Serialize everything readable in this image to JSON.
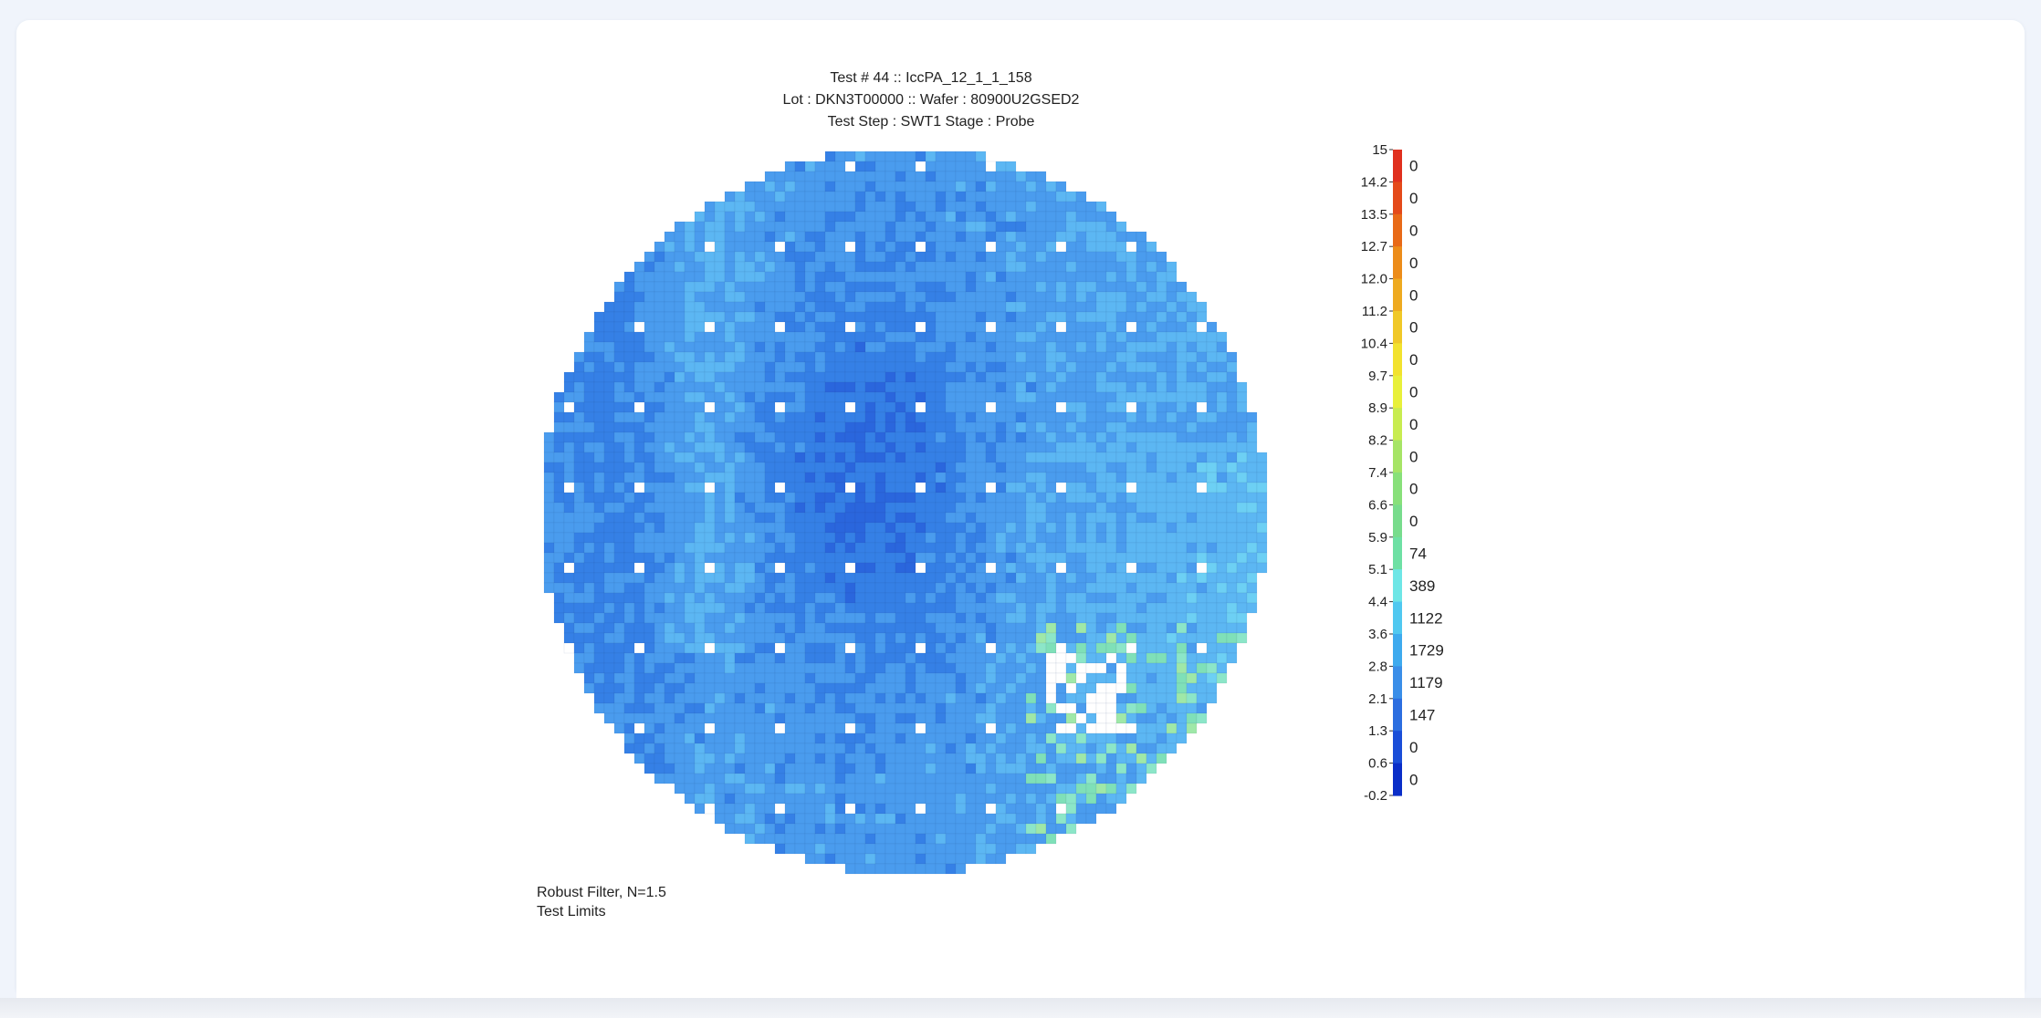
{
  "chart_data": {
    "type": "heatmap",
    "title_lines": [
      "Test #  44 :: IccPA_12_1_1_158",
      "Lot : DKN3T00000 :: Wafer : 80900U2GSED2",
      "Test Step : SWT1 Stage : Probe"
    ],
    "color_scale": {
      "tick_labels": [
        "15",
        "14.2",
        "13.5",
        "12.7",
        "12.0",
        "11.2",
        "10.4",
        "9.7",
        "8.9",
        "8.2",
        "7.4",
        "6.6",
        "5.9",
        "5.1",
        "4.4",
        "3.6",
        "2.8",
        "2.1",
        "1.3",
        "0.6",
        "-0.2"
      ],
      "bin_counts": [
        0,
        0,
        0,
        0,
        0,
        0,
        0,
        0,
        0,
        0,
        0,
        0,
        74,
        389,
        1122,
        1729,
        1179,
        147,
        0,
        0
      ],
      "bin_colors": [
        "#e0301e",
        "#e44a1a",
        "#e86a18",
        "#ec8c1a",
        "#eeaa20",
        "#f0c828",
        "#f2e22e",
        "#e8f03a",
        "#c8ec50",
        "#a6e466",
        "#88e07a",
        "#78dc8c",
        "#6ee0a4",
        "#6ee6e6",
        "#50c8f0",
        "#3eaaee",
        "#3a8ee8",
        "#2c6ee0",
        "#1a4ed8",
        "#0a2ec8"
      ]
    },
    "footnotes": [
      "Robust Filter, N=1.5",
      "Test Limits"
    ]
  }
}
